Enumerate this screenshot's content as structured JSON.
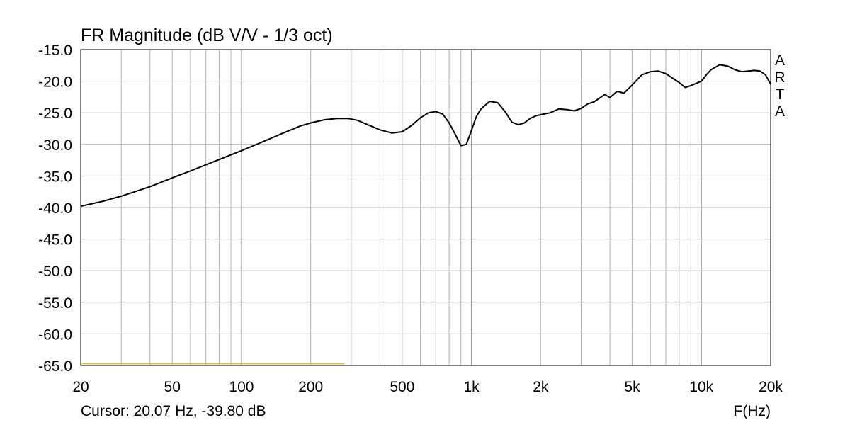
{
  "chart_data": {
    "type": "line",
    "title": "FR Magnitude (dB V/V - 1/3 oct)",
    "xlabel": "F(Hz)",
    "ylabel": "",
    "x_scale": "log",
    "xlim": [
      20,
      20000
    ],
    "ylim": [
      -65,
      -15
    ],
    "grid": true,
    "x_tick_labels": [
      {
        "value": 20,
        "label": "20"
      },
      {
        "value": 50,
        "label": "50"
      },
      {
        "value": 100,
        "label": "100"
      },
      {
        "value": 200,
        "label": "200"
      },
      {
        "value": 500,
        "label": "500"
      },
      {
        "value": 1000,
        "label": "1k"
      },
      {
        "value": 2000,
        "label": "2k"
      },
      {
        "value": 5000,
        "label": "5k"
      },
      {
        "value": 10000,
        "label": "10k"
      },
      {
        "value": 20000,
        "label": "20k"
      }
    ],
    "y_ticks": [
      -15,
      -20,
      -25,
      -30,
      -35,
      -40,
      -45,
      -50,
      -55,
      -60,
      -65
    ],
    "y_tick_labels": [
      "-15.0",
      "-20.0",
      "-25.0",
      "-30.0",
      "-35.0",
      "-40.0",
      "-45.0",
      "-50.0",
      "-55.0",
      "-60.0",
      "-65.0"
    ],
    "side_label": [
      "A",
      "R",
      "T",
      "A"
    ],
    "cursor_text": "Cursor: 20.07 Hz, -39.80 dB",
    "colors": {
      "curve": "#000000",
      "grid": "#b4b4b4",
      "marker": "#c8c040"
    },
    "series": [
      {
        "x": [
          20,
          25,
          30,
          40,
          50,
          60,
          80,
          100,
          120,
          150,
          180,
          200,
          230,
          260,
          290,
          320,
          360,
          400,
          450,
          500,
          550,
          600,
          650,
          700,
          750,
          800,
          850,
          900,
          950,
          1000,
          1050,
          1100,
          1200,
          1300,
          1400,
          1500,
          1600,
          1700,
          1800,
          1900,
          2000,
          2200,
          2400,
          2600,
          2800,
          3000,
          3200,
          3400,
          3600,
          3800,
          4000,
          4300,
          4600,
          5000,
          5500,
          6000,
          6500,
          7000,
          8000,
          8500,
          9000,
          10000,
          10500,
          11000,
          12000,
          13000,
          14000,
          15000,
          16000,
          17000,
          18000,
          19000,
          20000
        ],
        "values": [
          -39.8,
          -39.0,
          -38.2,
          -36.7,
          -35.3,
          -34.2,
          -32.4,
          -31.0,
          -29.8,
          -28.3,
          -27.1,
          -26.6,
          -26.1,
          -25.9,
          -25.9,
          -26.2,
          -27.0,
          -27.7,
          -28.2,
          -28.0,
          -27.0,
          -25.8,
          -25.0,
          -24.8,
          -25.2,
          -26.6,
          -28.4,
          -30.2,
          -30.0,
          -27.8,
          -25.6,
          -24.4,
          -23.2,
          -23.4,
          -24.8,
          -26.5,
          -26.9,
          -26.6,
          -25.9,
          -25.5,
          -25.3,
          -25.0,
          -24.4,
          -24.5,
          -24.7,
          -24.3,
          -23.6,
          -23.3,
          -22.7,
          -22.1,
          -22.6,
          -21.6,
          -21.9,
          -20.6,
          -19.0,
          -18.5,
          -18.4,
          -18.8,
          -20.2,
          -21.0,
          -20.7,
          -20.0,
          -19.0,
          -18.2,
          -17.4,
          -17.6,
          -18.2,
          -18.5,
          -18.4,
          -18.3,
          -18.4,
          -19.0,
          -20.5
        ]
      },
      {
        "x": [
          20,
          280
        ],
        "values": [
          -64.7,
          -64.7
        ]
      }
    ]
  }
}
